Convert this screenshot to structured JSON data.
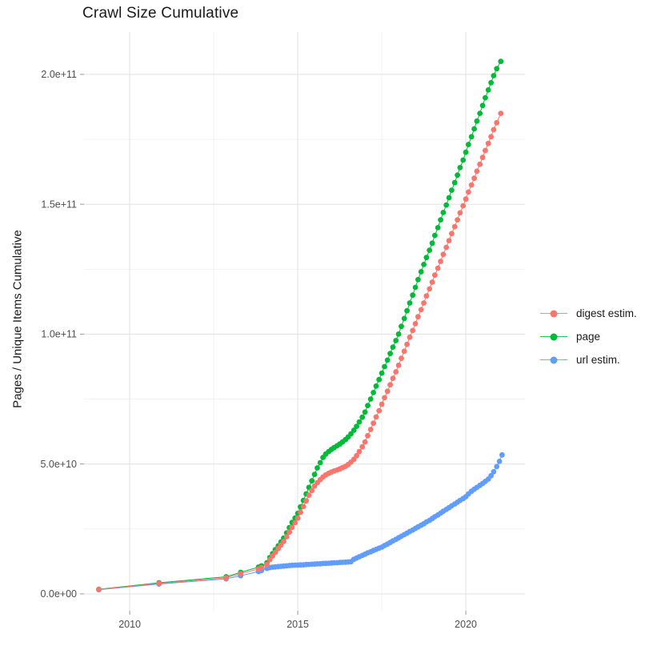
{
  "page": {
    "background": "#FFFFFF"
  },
  "colors": {
    "accent_red": "#F8766D",
    "accent_green": "#00BA38",
    "accent_blue": "#619CFF",
    "grid_major": "#E4E4E4",
    "grid_minor": "#F0F0F0",
    "axis_tick": "#999999",
    "tick_label": "#4D4D4D",
    "text": "#1A1A1A"
  },
  "legend": {
    "items": [
      {
        "label": "digest estim.",
        "color": "#F8766D"
      },
      {
        "label": "page",
        "color": "#00BA38"
      },
      {
        "label": "url estim.",
        "color": "#619CFF"
      }
    ]
  },
  "chart_data": {
    "type": "scatter",
    "title": "Crawl Size Cumulative",
    "xlabel": "",
    "ylabel": "Pages / Unique Items Cumulative",
    "grid": true,
    "legend_position": "right",
    "x_unit": "decimal year",
    "y_unit_multiplier": 1000000000,
    "xlim": [
      2008.64,
      2021.76
    ],
    "ylim_e9": [
      -6.5,
      216.3
    ],
    "x_major_ticks": [
      {
        "value": 2010,
        "label": "2010"
      },
      {
        "value": 2015,
        "label": "2015"
      },
      {
        "value": 2020,
        "label": "2020"
      }
    ],
    "x_minor_ticks": [
      2012.5,
      2017.5
    ],
    "y_major_ticks": [
      {
        "value_e9": 0,
        "label": "0.0e+00"
      },
      {
        "value_e9": 50,
        "label": "5.0e+10"
      },
      {
        "value_e9": 100,
        "label": "1.0e+11"
      },
      {
        "value_e9": 150,
        "label": "1.5e+11"
      },
      {
        "value_e9": 200,
        "label": "2.0e+11"
      }
    ],
    "y_minor_ticks_e9": [
      25,
      75,
      125,
      175
    ],
    "series": [
      {
        "name": "digest estim.",
        "color": "#F8766D",
        "points_year_value_e9": [
          [
            2009.08,
            1.7
          ],
          [
            2010.87,
            4.0
          ],
          [
            2012.87,
            6.2
          ],
          [
            2013.3,
            7.8
          ],
          [
            2013.83,
            9.6
          ],
          [
            2013.92,
            10.1
          ],
          [
            2014.08,
            11.3
          ],
          [
            2014.17,
            13.2
          ],
          [
            2014.25,
            14.6
          ],
          [
            2014.33,
            16.0
          ],
          [
            2014.42,
            17.4
          ],
          [
            2014.5,
            18.8
          ],
          [
            2014.58,
            20.2
          ],
          [
            2014.67,
            22.0
          ],
          [
            2014.75,
            23.8
          ],
          [
            2014.83,
            25.6
          ],
          [
            2014.92,
            27.4
          ],
          [
            2015.0,
            29.2
          ],
          [
            2015.08,
            31.4
          ],
          [
            2015.17,
            33.6
          ],
          [
            2015.25,
            35.8
          ],
          [
            2015.33,
            38.0
          ],
          [
            2015.42,
            39.8
          ],
          [
            2015.5,
            41.5
          ],
          [
            2015.58,
            42.8
          ],
          [
            2015.67,
            44.0
          ],
          [
            2015.75,
            45.0
          ],
          [
            2015.83,
            45.8
          ],
          [
            2015.92,
            46.4
          ],
          [
            2016.0,
            46.9
          ],
          [
            2016.08,
            47.3
          ],
          [
            2016.17,
            47.7
          ],
          [
            2016.25,
            48.1
          ],
          [
            2016.33,
            48.6
          ],
          [
            2016.42,
            49.1
          ],
          [
            2016.5,
            49.8
          ],
          [
            2016.58,
            50.7
          ],
          [
            2016.67,
            51.8
          ],
          [
            2016.75,
            53.2
          ],
          [
            2016.83,
            54.8
          ],
          [
            2016.92,
            56.6
          ],
          [
            2017.0,
            58.5
          ],
          [
            2017.08,
            60.9
          ],
          [
            2017.17,
            63.3
          ],
          [
            2017.25,
            65.7
          ],
          [
            2017.33,
            68.1
          ],
          [
            2017.42,
            70.5
          ],
          [
            2017.5,
            73.0
          ],
          [
            2017.58,
            75.5
          ],
          [
            2017.67,
            78.0
          ],
          [
            2017.75,
            80.5
          ],
          [
            2017.83,
            83.0
          ],
          [
            2017.92,
            85.5
          ],
          [
            2018.0,
            88.0
          ],
          [
            2018.08,
            90.7
          ],
          [
            2018.17,
            93.4
          ],
          [
            2018.25,
            96.1
          ],
          [
            2018.33,
            98.8
          ],
          [
            2018.42,
            101.4
          ],
          [
            2018.5,
            104.0
          ],
          [
            2018.58,
            106.7
          ],
          [
            2018.67,
            109.4
          ],
          [
            2018.75,
            112.0
          ],
          [
            2018.83,
            114.7
          ],
          [
            2018.92,
            117.4
          ],
          [
            2019.0,
            120.0
          ],
          [
            2019.08,
            122.7
          ],
          [
            2019.17,
            125.4
          ],
          [
            2019.25,
            128.0
          ],
          [
            2019.33,
            130.7
          ],
          [
            2019.42,
            133.4
          ],
          [
            2019.5,
            136.0
          ],
          [
            2019.58,
            138.7
          ],
          [
            2019.67,
            141.4
          ],
          [
            2019.75,
            144.0
          ],
          [
            2019.83,
            146.7
          ],
          [
            2019.92,
            149.4
          ],
          [
            2020.0,
            152.0
          ],
          [
            2020.08,
            154.7
          ],
          [
            2020.17,
            157.4
          ],
          [
            2020.25,
            160.0
          ],
          [
            2020.33,
            162.7
          ],
          [
            2020.42,
            165.4
          ],
          [
            2020.5,
            168.0
          ],
          [
            2020.58,
            170.7
          ],
          [
            2020.67,
            173.4
          ],
          [
            2020.75,
            176.0
          ],
          [
            2020.83,
            178.7
          ],
          [
            2020.92,
            181.4
          ],
          [
            2021.04,
            185.0
          ]
        ]
      },
      {
        "name": "page",
        "color": "#00BA38",
        "points_year_value_e9": [
          [
            2009.08,
            1.8
          ],
          [
            2010.87,
            4.3
          ],
          [
            2012.87,
            6.6
          ],
          [
            2013.3,
            8.3
          ],
          [
            2013.83,
            10.3
          ],
          [
            2013.92,
            10.8
          ],
          [
            2014.08,
            12.0
          ],
          [
            2014.17,
            14.0
          ],
          [
            2014.25,
            15.5
          ],
          [
            2014.33,
            17.0
          ],
          [
            2014.42,
            18.5
          ],
          [
            2014.5,
            20.0
          ],
          [
            2014.58,
            21.5
          ],
          [
            2014.67,
            23.5
          ],
          [
            2014.75,
            25.5
          ],
          [
            2014.83,
            27.5
          ],
          [
            2014.92,
            29.2
          ],
          [
            2015.0,
            31.0
          ],
          [
            2015.08,
            33.5
          ],
          [
            2015.17,
            36.0
          ],
          [
            2015.25,
            38.5
          ],
          [
            2015.33,
            41.0
          ],
          [
            2015.42,
            43.5
          ],
          [
            2015.5,
            46.0
          ],
          [
            2015.58,
            48.5
          ],
          [
            2015.67,
            50.5
          ],
          [
            2015.75,
            52.5
          ],
          [
            2015.83,
            53.8
          ],
          [
            2015.92,
            54.8
          ],
          [
            2016.0,
            55.6
          ],
          [
            2016.08,
            56.3
          ],
          [
            2016.17,
            57.0
          ],
          [
            2016.25,
            57.7
          ],
          [
            2016.33,
            58.5
          ],
          [
            2016.42,
            59.4
          ],
          [
            2016.5,
            60.4
          ],
          [
            2016.58,
            61.6
          ],
          [
            2016.67,
            63.0
          ],
          [
            2016.75,
            64.5
          ],
          [
            2016.83,
            66.2
          ],
          [
            2016.92,
            68.0
          ],
          [
            2017.0,
            70.0
          ],
          [
            2017.08,
            72.5
          ],
          [
            2017.17,
            75.0
          ],
          [
            2017.25,
            77.5
          ],
          [
            2017.33,
            80.0
          ],
          [
            2017.42,
            82.5
          ],
          [
            2017.5,
            85.0
          ],
          [
            2017.58,
            87.5
          ],
          [
            2017.67,
            90.0
          ],
          [
            2017.75,
            92.5
          ],
          [
            2017.83,
            95.0
          ],
          [
            2017.92,
            97.5
          ],
          [
            2018.0,
            100.0
          ],
          [
            2018.08,
            103.0
          ],
          [
            2018.17,
            106.0
          ],
          [
            2018.25,
            109.0
          ],
          [
            2018.33,
            112.0
          ],
          [
            2018.42,
            115.0
          ],
          [
            2018.5,
            118.0
          ],
          [
            2018.58,
            121.0
          ],
          [
            2018.67,
            124.0
          ],
          [
            2018.75,
            126.8
          ],
          [
            2018.83,
            129.5
          ],
          [
            2018.92,
            132.3
          ],
          [
            2019.0,
            135.0
          ],
          [
            2019.08,
            138.0
          ],
          [
            2019.17,
            141.0
          ],
          [
            2019.25,
            144.0
          ],
          [
            2019.33,
            146.8
          ],
          [
            2019.42,
            149.7
          ],
          [
            2019.5,
            152.5
          ],
          [
            2019.58,
            155.4
          ],
          [
            2019.67,
            158.3
          ],
          [
            2019.75,
            161.2
          ],
          [
            2019.83,
            164.1
          ],
          [
            2019.92,
            167.0
          ],
          [
            2020.0,
            170.0
          ],
          [
            2020.08,
            173.0
          ],
          [
            2020.17,
            176.0
          ],
          [
            2020.25,
            179.0
          ],
          [
            2020.33,
            182.0
          ],
          [
            2020.42,
            185.0
          ],
          [
            2020.5,
            188.0
          ],
          [
            2020.58,
            191.0
          ],
          [
            2020.67,
            194.0
          ],
          [
            2020.75,
            196.8
          ],
          [
            2020.83,
            199.5
          ],
          [
            2020.92,
            202.2
          ],
          [
            2021.04,
            205.0
          ]
        ]
      },
      {
        "name": "url estim.",
        "color": "#619CFF",
        "points_year_value_e9": [
          [
            2009.08,
            1.6
          ],
          [
            2010.87,
            3.8
          ],
          [
            2012.87,
            5.8
          ],
          [
            2013.3,
            7.0
          ],
          [
            2013.83,
            8.6
          ],
          [
            2013.92,
            9.0
          ],
          [
            2014.08,
            9.8
          ],
          [
            2014.17,
            10.1
          ],
          [
            2014.25,
            10.3
          ],
          [
            2014.33,
            10.4
          ],
          [
            2014.42,
            10.5
          ],
          [
            2014.5,
            10.6
          ],
          [
            2014.58,
            10.7
          ],
          [
            2014.67,
            10.8
          ],
          [
            2014.75,
            10.9
          ],
          [
            2014.83,
            11.0
          ],
          [
            2014.92,
            11.05
          ],
          [
            2015.0,
            11.1
          ],
          [
            2015.08,
            11.15
          ],
          [
            2015.17,
            11.2
          ],
          [
            2015.25,
            11.3
          ],
          [
            2015.33,
            11.35
          ],
          [
            2015.42,
            11.4
          ],
          [
            2015.5,
            11.5
          ],
          [
            2015.58,
            11.55
          ],
          [
            2015.67,
            11.6
          ],
          [
            2015.75,
            11.7
          ],
          [
            2015.83,
            11.75
          ],
          [
            2015.92,
            11.8
          ],
          [
            2016.0,
            11.9
          ],
          [
            2016.08,
            11.95
          ],
          [
            2016.17,
            12.0
          ],
          [
            2016.25,
            12.1
          ],
          [
            2016.33,
            12.15
          ],
          [
            2016.42,
            12.2
          ],
          [
            2016.5,
            12.3
          ],
          [
            2016.58,
            12.4
          ],
          [
            2016.67,
            13.3
          ],
          [
            2016.75,
            13.8
          ],
          [
            2016.83,
            14.3
          ],
          [
            2016.92,
            14.8
          ],
          [
            2017.0,
            15.3
          ],
          [
            2017.08,
            15.8
          ],
          [
            2017.17,
            16.2
          ],
          [
            2017.25,
            16.7
          ],
          [
            2017.33,
            17.1
          ],
          [
            2017.42,
            17.6
          ],
          [
            2017.5,
            18.0
          ],
          [
            2017.58,
            18.6
          ],
          [
            2017.67,
            19.2
          ],
          [
            2017.75,
            19.8
          ],
          [
            2017.83,
            20.4
          ],
          [
            2017.92,
            21.0
          ],
          [
            2018.0,
            21.6
          ],
          [
            2018.08,
            22.2
          ],
          [
            2018.17,
            22.8
          ],
          [
            2018.25,
            23.4
          ],
          [
            2018.33,
            24.0
          ],
          [
            2018.42,
            24.6
          ],
          [
            2018.5,
            25.2
          ],
          [
            2018.58,
            25.8
          ],
          [
            2018.67,
            26.4
          ],
          [
            2018.75,
            27.0
          ],
          [
            2018.83,
            27.7
          ],
          [
            2018.92,
            28.3
          ],
          [
            2019.0,
            29.0
          ],
          [
            2019.08,
            29.7
          ],
          [
            2019.17,
            30.4
          ],
          [
            2019.25,
            31.1
          ],
          [
            2019.33,
            31.8
          ],
          [
            2019.42,
            32.5
          ],
          [
            2019.5,
            33.2
          ],
          [
            2019.58,
            33.9
          ],
          [
            2019.67,
            34.6
          ],
          [
            2019.75,
            35.3
          ],
          [
            2019.83,
            36.0
          ],
          [
            2019.92,
            36.7
          ],
          [
            2020.0,
            37.4
          ],
          [
            2020.08,
            38.5
          ],
          [
            2020.17,
            39.5
          ],
          [
            2020.25,
            40.3
          ],
          [
            2020.33,
            41.0
          ],
          [
            2020.42,
            41.8
          ],
          [
            2020.5,
            42.5
          ],
          [
            2020.58,
            43.3
          ],
          [
            2020.67,
            44.2
          ],
          [
            2020.75,
            45.5
          ],
          [
            2020.83,
            47.0
          ],
          [
            2020.92,
            49.0
          ],
          [
            2021.0,
            51.0
          ],
          [
            2021.08,
            53.5
          ]
        ]
      }
    ]
  }
}
